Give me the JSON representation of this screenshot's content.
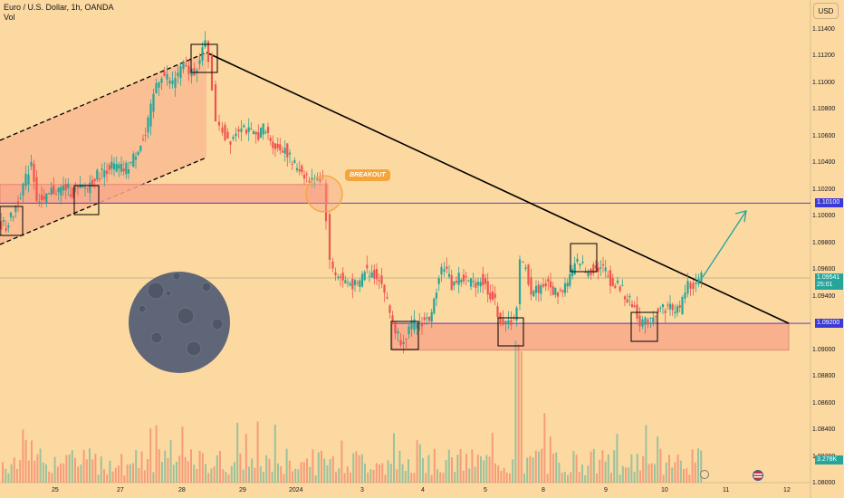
{
  "header": {
    "title": "Euro / U.S. Dollar, 1h, OANDA",
    "subtitle": "Vol"
  },
  "currency_button": "USD",
  "breakout_label": "BREAKOUT",
  "colors": {
    "background": "#fcd9a0",
    "up": "#26a69a",
    "down": "#ef5350",
    "zone": "#f9a98a",
    "level_line": "#5b3fd1",
    "trend_line": "#000000",
    "arrow": "#2fa69a"
  },
  "icons": {
    "moon": "moon-icon",
    "flag": "us-flag-icon",
    "settings": "gear-icon"
  },
  "chart_data": {
    "type": "candlestick",
    "symbol": "EURUSD",
    "timeframe": "1h",
    "x_ticks": [
      "25",
      "27",
      "28",
      "29",
      "2024",
      "3",
      "4",
      "5",
      "8",
      "9",
      "10",
      "11",
      "12"
    ],
    "y_ticks": [
      "1.11400",
      "1.11200",
      "1.11000",
      "1.10800",
      "1.10600",
      "1.10400",
      "1.10200",
      "1.10000",
      "1.09800",
      "1.09600",
      "1.09400",
      "1.09000",
      "1.08800",
      "1.08600",
      "1.08400",
      "1.08200",
      "1.08000"
    ],
    "ylim": [
      1.0796,
      1.1152
    ],
    "price_badges": [
      {
        "label": "1.10100",
        "value": 1.101,
        "color": "#3c3ad6"
      },
      {
        "label": "1.09541",
        "sub": "25:01",
        "value": 1.0954,
        "color": "#26a69a"
      },
      {
        "label": "1.09200",
        "value": 1.092,
        "color": "#3c3ad6"
      },
      {
        "label": "3.278K",
        "color": "#26a69a"
      }
    ],
    "levels": [
      1.101,
      1.092
    ],
    "price_path": [
      [
        0,
        1.0995
      ],
      [
        8,
        1.0993
      ],
      [
        16,
        1.1002
      ],
      [
        24,
        1.1018
      ],
      [
        30,
        1.1028
      ],
      [
        36,
        1.1042
      ],
      [
        42,
        1.1015
      ],
      [
        50,
        1.101
      ],
      [
        58,
        1.1019
      ],
      [
        66,
        1.102
      ],
      [
        74,
        1.1022
      ],
      [
        82,
        1.1018
      ],
      [
        90,
        1.102
      ],
      [
        98,
        1.1022
      ],
      [
        106,
        1.103
      ],
      [
        114,
        1.1033
      ],
      [
        122,
        1.1038
      ],
      [
        130,
        1.1037
      ],
      [
        138,
        1.1035
      ],
      [
        146,
        1.104
      ],
      [
        154,
        1.1052
      ],
      [
        162,
        1.106
      ],
      [
        168,
        1.108
      ],
      [
        174,
        1.11
      ],
      [
        180,
        1.1107
      ],
      [
        186,
        1.1104
      ],
      [
        192,
        1.11
      ],
      [
        198,
        1.1108
      ],
      [
        204,
        1.1112
      ],
      [
        210,
        1.1108
      ],
      [
        216,
        1.111
      ],
      [
        222,
        1.1116
      ],
      [
        228,
        1.113
      ],
      [
        232,
        1.1118
      ],
      [
        236,
        1.1098
      ],
      [
        240,
        1.1068
      ],
      [
        244,
        1.107
      ],
      [
        250,
        1.106
      ],
      [
        256,
        1.1058
      ],
      [
        262,
        1.1064
      ],
      [
        268,
        1.107
      ],
      [
        276,
        1.1063
      ],
      [
        284,
        1.106
      ],
      [
        292,
        1.1066
      ],
      [
        300,
        1.1058
      ],
      [
        308,
        1.105
      ],
      [
        316,
        1.1052
      ],
      [
        324,
        1.104
      ],
      [
        332,
        1.1036
      ],
      [
        340,
        1.103
      ],
      [
        346,
        1.1026
      ],
      [
        352,
        1.103
      ],
      [
        358,
        1.1028
      ],
      [
        362,
        1.1
      ],
      [
        366,
        1.0965
      ],
      [
        372,
        1.0958
      ],
      [
        380,
        1.0952
      ],
      [
        388,
        1.095
      ],
      [
        396,
        1.0947
      ],
      [
        404,
        1.096
      ],
      [
        412,
        1.0958
      ],
      [
        420,
        1.0955
      ],
      [
        426,
        1.0944
      ],
      [
        432,
        1.0928
      ],
      [
        438,
        1.0915
      ],
      [
        444,
        1.0908
      ],
      [
        450,
        1.0912
      ],
      [
        456,
        1.0918
      ],
      [
        462,
        1.092
      ],
      [
        470,
        1.0922
      ],
      [
        478,
        1.0925
      ],
      [
        486,
        1.0958
      ],
      [
        492,
        1.0964
      ],
      [
        500,
        1.0948
      ],
      [
        508,
        1.0955
      ],
      [
        516,
        1.0952
      ],
      [
        524,
        1.095
      ],
      [
        532,
        1.0953
      ],
      [
        540,
        1.0945
      ],
      [
        548,
        1.0935
      ],
      [
        554,
        1.0922
      ],
      [
        560,
        1.0918
      ],
      [
        566,
        1.0922
      ],
      [
        572,
        1.093
      ],
      [
        576,
        1.0965
      ],
      [
        582,
        1.096
      ],
      [
        588,
        1.0944
      ],
      [
        596,
        1.0946
      ],
      [
        604,
        1.095
      ],
      [
        612,
        1.0944
      ],
      [
        620,
        1.0943
      ],
      [
        628,
        1.0952
      ],
      [
        636,
        1.0962
      ],
      [
        642,
        1.0968
      ],
      [
        648,
        1.0958
      ],
      [
        654,
        1.096
      ],
      [
        662,
        1.0962
      ],
      [
        670,
        1.096
      ],
      [
        678,
        1.0948
      ],
      [
        686,
        1.0948
      ],
      [
        694,
        1.0938
      ],
      [
        702,
        1.0932
      ],
      [
        708,
        1.0922
      ],
      [
        714,
        1.092
      ],
      [
        720,
        1.0925
      ],
      [
        728,
        1.093
      ],
      [
        736,
        1.0932
      ],
      [
        744,
        1.0932
      ],
      [
        752,
        1.093
      ],
      [
        758,
        1.0945
      ],
      [
        764,
        1.095
      ],
      [
        770,
        1.0948
      ],
      [
        776,
        1.0954
      ]
    ]
  }
}
